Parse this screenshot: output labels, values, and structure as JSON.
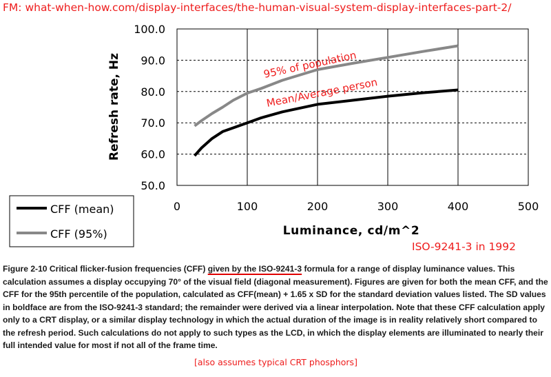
{
  "source_note": "FM: what-when-how.com/display-interfaces/the-human-visual-system-display-interfaces-part-2/",
  "chart_data": {
    "type": "line",
    "xlabel": "Luminance, cd/m^2",
    "ylabel": "Refresh rate, Hz",
    "xlim": [
      0,
      500
    ],
    "ylim": [
      50,
      100
    ],
    "x_ticks": [
      "0",
      "100",
      "200",
      "300",
      "400",
      "500"
    ],
    "y_ticks": [
      "50.0",
      "60.0",
      "70.0",
      "80.0",
      "90.0",
      "100.0"
    ],
    "vertical_grid": "solid",
    "horizontal_grid": "dashed",
    "legend_position": "bottom-left outside plot",
    "series": [
      {
        "name": "CFF (mean)",
        "color": "#000000",
        "x": [
          25,
          35,
          50,
          65,
          80,
          100,
          120,
          150,
          200,
          250,
          300,
          350,
          400
        ],
        "y": [
          59.5,
          62,
          65,
          67.2,
          68.4,
          70,
          71.6,
          73.5,
          75.9,
          77.2,
          78.5,
          79.6,
          80.5
        ]
      },
      {
        "name": "CFF (95%)",
        "color": "#888888",
        "x": [
          25,
          35,
          50,
          65,
          80,
          100,
          120,
          150,
          200,
          250,
          300,
          350,
          400
        ],
        "y": [
          69,
          70.7,
          73,
          75,
          77.2,
          79.5,
          81,
          83.6,
          87,
          89,
          90.9,
          92.8,
          94.6
        ]
      }
    ],
    "annotations": {
      "upper_curve": "95% of population",
      "lower_curve": "Mean/Average person",
      "standard": "ISO-9241-3 in 1992"
    },
    "annotation_color": "#ee1c1c"
  },
  "caption": {
    "prefix": "Figure 2-10 Critical flicker-fusion frequencies (CFF) ",
    "underlined": "given by the ISO-9241-3",
    "rest": " formula for a range of display luminance values. This calculation assumes a display occupying 70° of the visual field (diagonal measurement). Figures are given for both the mean CFF, and the CFF for the 95th percentile of the population, calculated as CFF(mean) + 1.65 x SD for the standard deviation values listed. The SD values in boldface are from the ISO-9241-3 standard; the remainder were derived via a linear interpolation. Note that these CFF calculation apply only to a CRT display, or a similar display technology in which the actual duration of the image is in reality relatively short compared to the refresh period. Such calculations do not apply to such types as the LCD, in which the display elements are illuminated to nearly their full intended value for most if not all of the frame time.",
    "note": "[also assumes typical CRT phosphors]"
  }
}
